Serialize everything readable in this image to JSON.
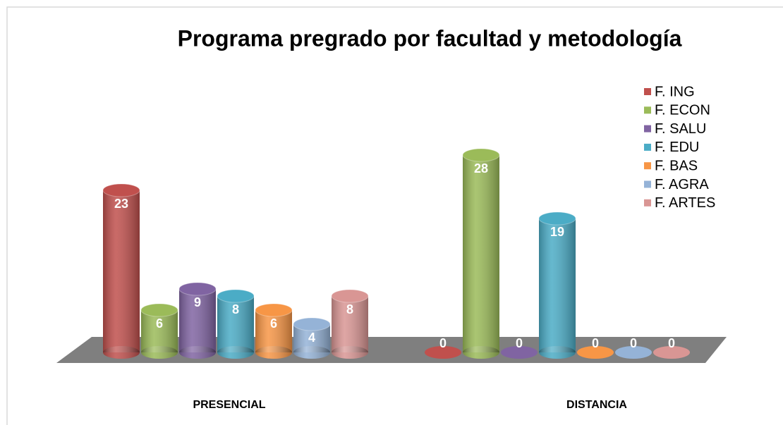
{
  "chart_data": {
    "type": "bar",
    "title": "Programa pregrado por facultad y metodología",
    "categories": [
      "PRESENCIAL",
      "DISTANCIA"
    ],
    "series": [
      {
        "name": "F. ING",
        "color": "#c0504d",
        "values": [
          23,
          0
        ]
      },
      {
        "name": "F. ECON",
        "color": "#9bbb59",
        "values": [
          6,
          28
        ]
      },
      {
        "name": "F. SALU",
        "color": "#8064a2",
        "values": [
          9,
          0
        ]
      },
      {
        "name": "F. EDU",
        "color": "#4bacc6",
        "values": [
          8,
          19
        ]
      },
      {
        "name": "F. BAS",
        "color": "#f79646",
        "values": [
          6,
          0
        ]
      },
      {
        "name": "F. AGRA",
        "color": "#95b3d7",
        "values": [
          4,
          0
        ]
      },
      {
        "name": "F. ARTES",
        "color": "#d99694",
        "values": [
          8,
          0
        ]
      }
    ],
    "legend": "right"
  }
}
